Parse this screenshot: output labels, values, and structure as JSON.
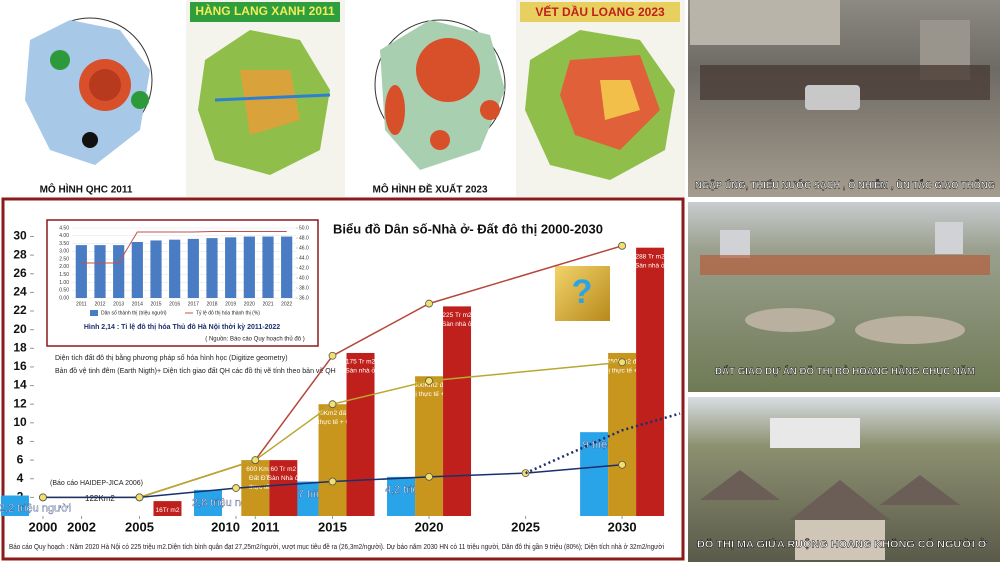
{
  "maps": [
    {
      "label": "MÔ HÌNH QHC 2011"
    },
    {
      "label": "HÀNG LANG XANH 2011"
    },
    {
      "label": "MÔ HÌNH  ĐỀ XUẤT 2023"
    },
    {
      "label": "VẾT DẦU LOANG 2023"
    }
  ],
  "photos": [
    {
      "caption": "NGẬP ÚNG, THIẾU NƯỚC SẠCH , Ô NHIỄM , ÙN TẮC GIAO THÔNG"
    },
    {
      "caption": "ĐẤT GIAO DỰ ÁN ĐÔ THỊ BỎ HOANG HÀNG CHỤC NĂM"
    },
    {
      "caption": "ĐÔ THỊ MA GIỮA RUỘNG HOANG KHÔNG CÓ NGƯỜI Ở"
    }
  ],
  "chart_data": [
    {
      "type": "bar",
      "title": "Biểu đồ Dân số-Nhà ở- Đất đô thị 2000-2030",
      "xlim": [
        1998.5,
        2033
      ],
      "xticks": [
        2000,
        2002,
        2005,
        2010,
        2011,
        2015,
        2020,
        2025,
        2030
      ],
      "ylim": [
        0,
        30
      ],
      "yticks": [
        2,
        4,
        6,
        8,
        10,
        12,
        14,
        16,
        18,
        20,
        22,
        24,
        26,
        28,
        30
      ],
      "bars": [
        {
          "color": "#2aa4e8",
          "x": [
            2000,
            2010,
            2015,
            2020,
            2030
          ],
          "values": [
            2.2,
            2.8,
            3.7,
            4.2,
            9
          ],
          "value_labels": [
            [
              "2,2 triệu người"
            ],
            [
              "2,8 triệu người"
            ],
            [
              "3,7 triệu người"
            ],
            [
              "4,2 triệu người"
            ],
            [
              "9 triệu người"
            ]
          ]
        },
        {
          "color": "#c8961c",
          "x": [
            2011,
            2015,
            2020,
            2030
          ],
          "values": [
            6,
            12,
            15,
            17.5
          ],
          "value_labels": [
            [
              "600  Km2",
              "Đất ĐT",
              "thực tế"
            ],
            [
              "1.200Km2 đất đô thị",
              "thực tế + QH"
            ],
            [
              "1.500Km2 đất đô",
              "thị thực tế + QH"
            ],
            [
              "1.750Km2 đất đô",
              "thị thực tế + QH"
            ]
          ]
        },
        {
          "color": "#c0201c",
          "x": [
            2005,
            2011,
            2015,
            2020,
            2030
          ],
          "values": [
            1.6,
            6,
            17.5,
            22.5,
            28.8
          ],
          "value_labels": [
            [
              "16Tr m2"
            ],
            [
              "60 Tr m2",
              "Sàn Nhà ở"
            ],
            [
              "175 Tr m2",
              "Sàn nhà ở"
            ],
            [
              "225 Tr m2",
              "Sàn nhà ở"
            ],
            [
              "288 Tr m2",
              "Sàn nhà ở"
            ]
          ]
        }
      ],
      "lines": [
        {
          "color": "#b5473a",
          "dashed": false,
          "x": [
            2005,
            2011,
            2015,
            2020,
            2030
          ],
          "values": [
            2,
            6,
            17.2,
            22.8,
            29
          ]
        },
        {
          "color": "#b8a830",
          "dashed": false,
          "x": [
            2000,
            2005,
            2011,
            2015,
            2020,
            2030
          ],
          "values": [
            2,
            2,
            6,
            12,
            14.5,
            16.5
          ]
        },
        {
          "color": "#1a2f6e",
          "dashed": false,
          "x": [
            2000,
            2005,
            2010,
            2015,
            2020,
            2025,
            2030
          ],
          "values": [
            2,
            2,
            3,
            3.7,
            4.2,
            4.6,
            5.5
          ]
        },
        {
          "color": "#1a2f6e",
          "dashed": true,
          "x": [
            2025,
            2030,
            2033
          ],
          "values": [
            4.6,
            9.2,
            11
          ]
        }
      ],
      "annotations": {
        "source_2000": "(Báo cáo HAIDEP-JICA 2006)",
        "land_2002": "122Km2",
        "method_1": "Diện tích đất đô thị bằng phương pháp số hóa hình học (Digitize geometry)",
        "method_2": "Bản đồ vệ tinh đêm (Earth Nigth)+ Diện tích giao đất QH các đồ thị vẽ tính theo bản vẽ QH",
        "unknown": "?",
        "footnote": "Báo cáo Quy hoạch : Năm 2020 Hà Nội có 225 triệu m2.Diện tích bình quân đạt 27,25m2/người, vượt mục tiêu đề ra (26,3m2/người). Dự báo năm 2030 HN có 11 triệu người, Dân đô thị gần 9 triệu (80%); Diện tích  nhà ở 32m2/người"
      }
    },
    {
      "type": "bar",
      "title": "Hình 2,14 : Tỉ lệ đô thị hóa Thủ đô Hà Nội thời kỳ 2011-2022",
      "source": "( Nguồn: Báo cáo Quy hoạch thủ đô )",
      "categories": [
        "2011",
        "2012",
        "2013",
        "2014",
        "2015",
        "2016",
        "2017",
        "2018",
        "2019",
        "2020",
        "2021",
        "2022"
      ],
      "series": [
        {
          "name": "Dân số thành thị (triệu người)",
          "color": "#4a7cc4",
          "values": [
            3.4,
            3.4,
            3.4,
            3.6,
            3.7,
            3.75,
            3.8,
            3.85,
            3.9,
            3.95,
            3.95,
            3.95
          ]
        },
        {
          "name": "Tỷ lệ đô thị hóa thành thị (%)",
          "color": "#c0504d",
          "axis": "y2",
          "values": [
            43,
            43,
            43,
            49.2,
            49.2,
            49.2,
            49.2,
            49.3,
            49.3,
            49.3,
            49.3,
            49.3
          ]
        }
      ],
      "ylim": [
        0,
        4.5
      ],
      "yticks": [
        {
          "value": 0,
          "label": "0.00"
        },
        {
          "value": 0.5,
          "label": "0.50"
        },
        {
          "value": 1,
          "label": "1.00"
        },
        {
          "value": 1.5,
          "label": "1.50"
        },
        {
          "value": 2,
          "label": "2.00"
        },
        {
          "value": 2.5,
          "label": "2.50"
        },
        {
          "value": 3,
          "label": "3.00"
        },
        {
          "value": 3.5,
          "label": "3.50"
        },
        {
          "value": 4,
          "label": "4.00"
        },
        {
          "value": 4.5,
          "label": "4.50"
        }
      ],
      "y2lim": [
        36,
        50
      ],
      "y2ticks": [
        {
          "value": 36,
          "label": "36.0"
        },
        {
          "value": 38,
          "label": "38.0"
        },
        {
          "value": 40,
          "label": "40.0"
        },
        {
          "value": 42,
          "label": "42.0"
        },
        {
          "value": 44,
          "label": "44.0"
        },
        {
          "value": 46,
          "label": "46.0"
        },
        {
          "value": 48,
          "label": "48.0"
        },
        {
          "value": 50,
          "label": "50.0"
        }
      ]
    }
  ]
}
